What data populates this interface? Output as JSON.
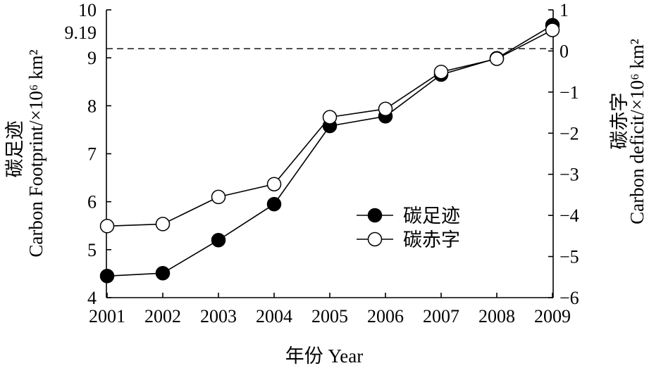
{
  "chart_data": {
    "type": "line",
    "categories": [
      "2001",
      "2002",
      "2003",
      "2004",
      "2005",
      "2006",
      "2007",
      "2008",
      "2009"
    ],
    "xlabel": "年份 Year",
    "ylabel": [
      "碳足迹",
      "Carbon Footprint/×10⁶ km²"
    ],
    "y2label": [
      "碳赤字",
      "Carbon deficit/×10⁶ km²"
    ],
    "ylim": [
      4,
      10
    ],
    "y2lim": [
      -6,
      1
    ],
    "yticks": [
      "4",
      "5",
      "6",
      "7",
      "8",
      "9",
      "10"
    ],
    "y2ticks": [
      "−6",
      "−5",
      "−4",
      "−3",
      "−2",
      "−1",
      "0",
      "1"
    ],
    "reference_line": {
      "y": 9.19,
      "dashed": true
    },
    "series": [
      {
        "name": "碳足迹",
        "y_axis": "left",
        "color": "#000000",
        "marker_fill": "#000000",
        "values": [
          4.45,
          4.51,
          5.2,
          5.95,
          7.58,
          7.78,
          8.65,
          8.99,
          9.68
        ]
      },
      {
        "name": "碳赤字",
        "y_axis": "right",
        "color": "#000000",
        "marker_fill": "#ffffff",
        "values": [
          -4.26,
          -4.21,
          -3.55,
          -3.24,
          -1.61,
          -1.41,
          -0.51,
          -0.19,
          0.51
        ]
      }
    ],
    "legend": "lower-right",
    "grid": false
  }
}
